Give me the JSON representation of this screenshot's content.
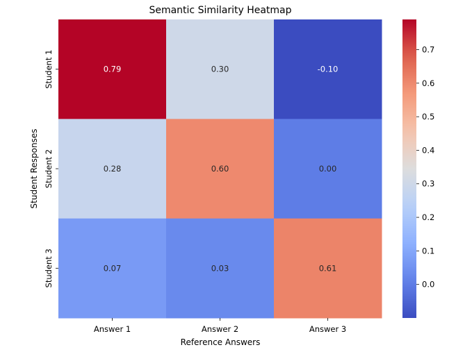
{
  "chart_data": {
    "type": "heatmap",
    "title": "Semantic Similarity Heatmap",
    "xlabel": "Reference Answers",
    "ylabel": "Student Responses",
    "x_categories": [
      "Answer 1",
      "Answer 2",
      "Answer 3"
    ],
    "y_categories": [
      "Student 1",
      "Student 2",
      "Student 3"
    ],
    "values": [
      [
        0.79,
        0.3,
        -0.1
      ],
      [
        0.28,
        0.6,
        0.0
      ],
      [
        0.07,
        0.03,
        0.61
      ]
    ],
    "annotations": [
      [
        "0.79",
        "0.30",
        "-0.10"
      ],
      [
        "0.28",
        "0.60",
        "0.00"
      ],
      [
        "0.07",
        "0.03",
        "0.61"
      ]
    ],
    "colormap": "coolwarm",
    "vmin": -0.1,
    "vmax": 0.79,
    "colorbar_ticks": [
      0.0,
      0.1,
      0.2,
      0.3,
      0.4,
      0.5,
      0.6,
      0.7
    ],
    "colorbar_tick_labels": [
      "0.0",
      "0.1",
      "0.2",
      "0.3",
      "0.4",
      "0.5",
      "0.6",
      "0.7"
    ]
  }
}
